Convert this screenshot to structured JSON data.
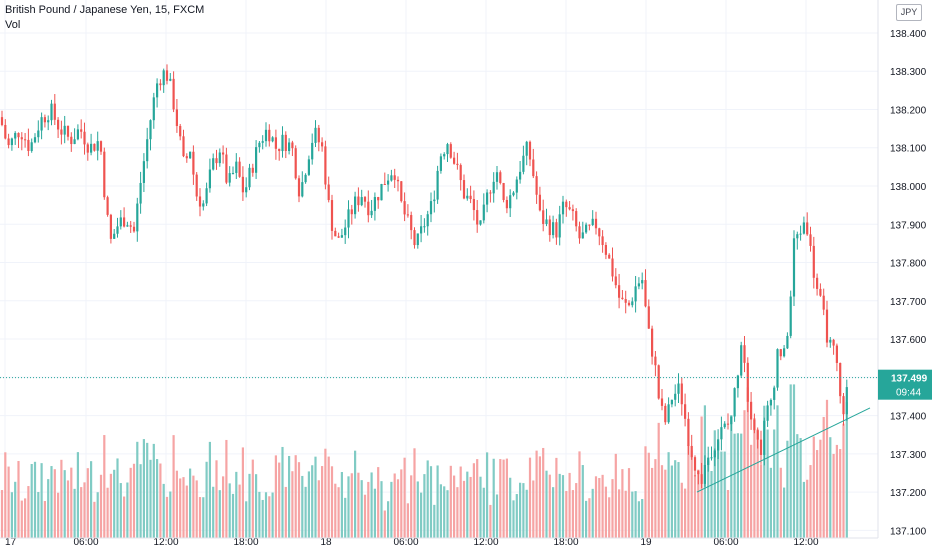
{
  "header": {
    "title": "British Pound / Japanese Yen, 15, FXCM",
    "volume_label": "Vol",
    "currency_button": "JPY"
  },
  "colors": {
    "up": "#26a69a",
    "down": "#ef5350",
    "vol_up": "#80cbc4",
    "vol_down": "#f6a4a4",
    "grid": "#f0f3fa",
    "axis_text": "#131722",
    "price_line": "#26a69a",
    "trendline": "#26a69a"
  },
  "chart_data": {
    "type": "candlestick",
    "symbol": "British Pound / Japanese Yen",
    "interval": "15",
    "source": "FXCM",
    "ylim": [
      137.08,
      138.46
    ],
    "y_ticks": [
      "137.100",
      "137.200",
      "137.300",
      "137.400",
      "137.500",
      "137.600",
      "137.700",
      "137.800",
      "137.900",
      "138.000",
      "138.100",
      "138.200",
      "138.300",
      "138.400"
    ],
    "x_tick_labels": [
      "17",
      "06:00",
      "12:00",
      "18:00",
      "18",
      "06:00",
      "12:00",
      "18:00",
      "19",
      "06:00",
      "12:00"
    ],
    "grid": true,
    "last_price": "137.499",
    "countdown": "09:44",
    "close_path": [
      [
        0,
        138.18
      ],
      [
        8,
        138.1
      ],
      [
        20,
        138.15
      ],
      [
        30,
        138.1
      ],
      [
        40,
        138.17
      ],
      [
        50,
        138.2
      ],
      [
        60,
        138.15
      ],
      [
        70,
        138.12
      ],
      [
        80,
        138.15
      ],
      [
        90,
        138.1
      ],
      [
        100,
        138.12
      ],
      [
        104,
        138.0
      ],
      [
        110,
        137.85
      ],
      [
        118,
        137.9
      ],
      [
        126,
        137.92
      ],
      [
        134,
        137.88
      ],
      [
        140,
        138.0
      ],
      [
        146,
        138.1
      ],
      [
        152,
        138.2
      ],
      [
        158,
        138.28
      ],
      [
        166,
        138.3
      ],
      [
        172,
        138.24
      ],
      [
        178,
        138.15
      ],
      [
        184,
        138.05
      ],
      [
        190,
        138.1
      ],
      [
        196,
        137.98
      ],
      [
        204,
        137.95
      ],
      [
        212,
        138.05
      ],
      [
        220,
        138.1
      ],
      [
        228,
        138.0
      ],
      [
        236,
        138.05
      ],
      [
        244,
        137.98
      ],
      [
        252,
        138.05
      ],
      [
        260,
        138.12
      ],
      [
        268,
        138.15
      ],
      [
        276,
        138.1
      ],
      [
        284,
        138.12
      ],
      [
        292,
        138.1
      ],
      [
        300,
        137.98
      ],
      [
        308,
        138.08
      ],
      [
        314,
        138.14
      ],
      [
        322,
        138.1
      ],
      [
        330,
        137.92
      ],
      [
        338,
        137.85
      ],
      [
        346,
        137.9
      ],
      [
        354,
        137.95
      ],
      [
        362,
        137.98
      ],
      [
        370,
        137.94
      ],
      [
        378,
        137.98
      ],
      [
        386,
        138.02
      ],
      [
        394,
        138.05
      ],
      [
        400,
        137.96
      ],
      [
        408,
        137.9
      ],
      [
        416,
        137.84
      ],
      [
        424,
        137.9
      ],
      [
        432,
        137.95
      ],
      [
        440,
        138.08
      ],
      [
        448,
        138.12
      ],
      [
        456,
        138.05
      ],
      [
        464,
        137.98
      ],
      [
        472,
        137.95
      ],
      [
        480,
        137.88
      ],
      [
        488,
        137.98
      ],
      [
        496,
        138.05
      ],
      [
        504,
        137.95
      ],
      [
        512,
        137.98
      ],
      [
        520,
        138.05
      ],
      [
        528,
        138.1
      ],
      [
        534,
        138.02
      ],
      [
        540,
        137.92
      ],
      [
        548,
        137.9
      ],
      [
        556,
        137.88
      ],
      [
        564,
        137.95
      ],
      [
        572,
        137.92
      ],
      [
        580,
        137.86
      ],
      [
        588,
        137.88
      ],
      [
        596,
        137.9
      ],
      [
        604,
        137.85
      ],
      [
        612,
        137.78
      ],
      [
        620,
        137.7
      ],
      [
        628,
        137.68
      ],
      [
        636,
        137.74
      ],
      [
        642,
        137.76
      ],
      [
        648,
        137.62
      ],
      [
        654,
        137.55
      ],
      [
        660,
        137.42
      ],
      [
        666,
        137.38
      ],
      [
        672,
        137.45
      ],
      [
        680,
        137.47
      ],
      [
        688,
        137.35
      ],
      [
        694,
        137.28
      ],
      [
        700,
        137.22
      ],
      [
        706,
        137.28
      ],
      [
        714,
        137.33
      ],
      [
        722,
        137.36
      ],
      [
        730,
        137.38
      ],
      [
        736,
        137.48
      ],
      [
        742,
        137.62
      ],
      [
        748,
        137.45
      ],
      [
        754,
        137.38
      ],
      [
        760,
        137.3
      ],
      [
        766,
        137.4
      ],
      [
        772,
        137.45
      ],
      [
        778,
        137.58
      ],
      [
        784,
        137.55
      ],
      [
        790,
        137.68
      ],
      [
        794,
        137.85
      ],
      [
        800,
        137.88
      ],
      [
        806,
        137.92
      ],
      [
        812,
        137.8
      ],
      [
        818,
        137.72
      ],
      [
        824,
        137.65
      ],
      [
        830,
        137.58
      ],
      [
        836,
        137.55
      ],
      [
        840,
        137.44
      ],
      [
        844,
        137.42
      ],
      [
        848,
        137.48
      ]
    ],
    "trendline": {
      "start": [
        697,
        137.2
      ],
      "end": [
        870,
        137.42
      ]
    },
    "volume_lim": [
      0,
      7.5
    ]
  }
}
